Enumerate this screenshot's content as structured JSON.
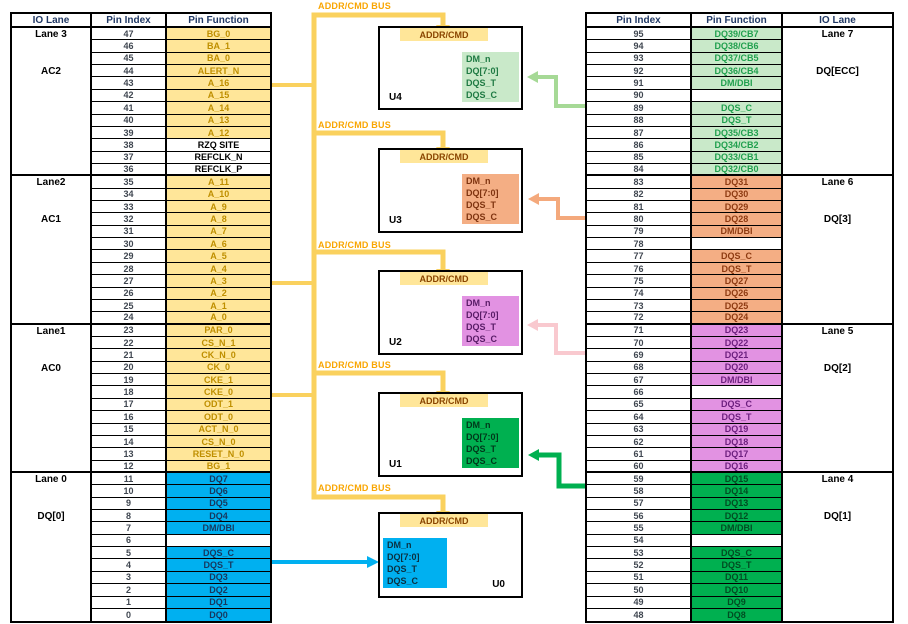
{
  "colors": {
    "yellow_bg": "#FFE699",
    "yellow_text": "#BF8F00",
    "blue_bg": "#00B0F0",
    "blue_text": "#17375E",
    "ltgreen_bg": "#C9E9C9",
    "ltgreen_text": "#21A04E",
    "salmon_bg": "#F4AE84",
    "salmon_text": "#8E3B12",
    "violet_bg": "#E292E2",
    "violet_text": "#6C1F7E",
    "green_bg": "#00B050",
    "green_text": "#004D22",
    "bus": "#FAD15E",
    "bus_label_text": "#F9A602",
    "addr_box_bg": "#FFE699",
    "addr_box_text": "#8A4500",
    "header_text": "#203864",
    "index_text": "#3F4650"
  },
  "bus": {
    "label": "ADDR/CMD BUS"
  },
  "left_table": {
    "headers": [
      "IO Lane",
      "Pin Index",
      "Pin Function"
    ],
    "groups": [
      {
        "lane": "Lane 3",
        "sublabel": "AC2",
        "rows": [
          [
            47,
            "BG_0",
            "Y"
          ],
          [
            46,
            "BA_1",
            "Y"
          ],
          [
            45,
            "BA_0",
            "Y"
          ],
          [
            44,
            "ALERT_N",
            "Y"
          ],
          [
            43,
            "A_16",
            "Y"
          ],
          [
            42,
            "A_15",
            "Y"
          ],
          [
            41,
            "A_14",
            "Y"
          ],
          [
            40,
            "A_13",
            "Y"
          ],
          [
            39,
            "A_12",
            "Y"
          ],
          [
            38,
            "RZQ SITE",
            "W"
          ],
          [
            37,
            "REFCLK_N",
            "W"
          ],
          [
            36,
            "REFCLK_P",
            "W"
          ]
        ]
      },
      {
        "lane": "Lane2",
        "sublabel": "AC1",
        "rows": [
          [
            35,
            "A_11",
            "Y"
          ],
          [
            34,
            "A_10",
            "Y"
          ],
          [
            33,
            "A_9",
            "Y"
          ],
          [
            32,
            "A_8",
            "Y"
          ],
          [
            31,
            "A_7",
            "Y"
          ],
          [
            30,
            "A_6",
            "Y"
          ],
          [
            29,
            "A_5",
            "Y"
          ],
          [
            28,
            "A_4",
            "Y"
          ],
          [
            27,
            "A_3",
            "Y"
          ],
          [
            26,
            "A_2",
            "Y"
          ],
          [
            25,
            "A_1",
            "Y"
          ],
          [
            24,
            "A_0",
            "Y"
          ]
        ]
      },
      {
        "lane": "Lane1",
        "sublabel": "AC0",
        "rows": [
          [
            23,
            "PAR_0",
            "Y"
          ],
          [
            22,
            "CS_N_1",
            "Y"
          ],
          [
            21,
            "CK_N_0",
            "Y"
          ],
          [
            20,
            "CK_0",
            "Y"
          ],
          [
            19,
            "CKE_1",
            "Y"
          ],
          [
            18,
            "CKE_0",
            "Y"
          ],
          [
            17,
            "ODT_1",
            "Y"
          ],
          [
            16,
            "ODT_0",
            "Y"
          ],
          [
            15,
            "ACT_N_0",
            "Y"
          ],
          [
            14,
            "CS_N_0",
            "Y"
          ],
          [
            13,
            "RESET_N_0",
            "Y"
          ],
          [
            12,
            "BG_1",
            "Y"
          ]
        ]
      },
      {
        "lane": "Lane 0",
        "sublabel": "DQ[0]",
        "rows": [
          [
            11,
            "DQ7",
            "B"
          ],
          [
            10,
            "DQ6",
            "B"
          ],
          [
            9,
            "DQ5",
            "B"
          ],
          [
            8,
            "DQ4",
            "B"
          ],
          [
            7,
            "DM/DBI",
            "B"
          ],
          [
            6,
            "",
            "X"
          ],
          [
            5,
            "DQS_C",
            "B"
          ],
          [
            4,
            "DQS_T",
            "B"
          ],
          [
            3,
            "DQ3",
            "B"
          ],
          [
            2,
            "DQ2",
            "B"
          ],
          [
            1,
            "DQ1",
            "B"
          ],
          [
            0,
            "DQ0",
            "B"
          ]
        ]
      }
    ]
  },
  "right_table": {
    "headers": [
      "Pin Index",
      "Pin Function",
      "IO Lane"
    ],
    "groups": [
      {
        "lane": "Lane 7",
        "sublabel": "DQ[ECC]",
        "rows": [
          [
            95,
            "DQ39/CB7",
            "LG"
          ],
          [
            94,
            "DQ38/CB6",
            "LG"
          ],
          [
            93,
            "DQ37/CB5",
            "LG"
          ],
          [
            92,
            "DQ36/CB4",
            "LG"
          ],
          [
            91,
            "DM/DBI",
            "LG"
          ],
          [
            90,
            "",
            "X"
          ],
          [
            89,
            "DQS_C",
            "LG"
          ],
          [
            88,
            "DQS_T",
            "LG"
          ],
          [
            87,
            "DQ35/CB3",
            "LG"
          ],
          [
            86,
            "DQ34/CB2",
            "LG"
          ],
          [
            85,
            "DQ33/CB1",
            "LG"
          ],
          [
            84,
            "DQ32/CB0",
            "LG"
          ]
        ]
      },
      {
        "lane": "Lane 6",
        "sublabel": "DQ[3]",
        "rows": [
          [
            83,
            "DQ31",
            "S"
          ],
          [
            82,
            "DQ30",
            "S"
          ],
          [
            81,
            "DQ29",
            "S"
          ],
          [
            80,
            "DQ28",
            "S"
          ],
          [
            79,
            "DM/DBI",
            "S"
          ],
          [
            78,
            "",
            "X"
          ],
          [
            77,
            "DQS_C",
            "S"
          ],
          [
            76,
            "DQS_T",
            "S"
          ],
          [
            75,
            "DQ27",
            "S"
          ],
          [
            74,
            "DQ26",
            "S"
          ],
          [
            73,
            "DQ25",
            "S"
          ],
          [
            72,
            "DQ24",
            "S"
          ]
        ]
      },
      {
        "lane": "Lane 5",
        "sublabel": "DQ[2]",
        "rows": [
          [
            71,
            "DQ23",
            "V"
          ],
          [
            70,
            "DQ22",
            "V"
          ],
          [
            69,
            "DQ21",
            "V"
          ],
          [
            68,
            "DQ20",
            "V"
          ],
          [
            67,
            "DM/DBI",
            "V"
          ],
          [
            66,
            "",
            "X"
          ],
          [
            65,
            "DQS_C",
            "V"
          ],
          [
            64,
            "DQS_T",
            "V"
          ],
          [
            63,
            "DQ19",
            "V"
          ],
          [
            62,
            "DQ18",
            "V"
          ],
          [
            61,
            "DQ17",
            "V"
          ],
          [
            60,
            "DQ16",
            "V"
          ]
        ]
      },
      {
        "lane": "Lane 4",
        "sublabel": "DQ[1]",
        "rows": [
          [
            59,
            "DQ15",
            "G"
          ],
          [
            58,
            "DQ14",
            "G"
          ],
          [
            57,
            "DQ13",
            "G"
          ],
          [
            56,
            "DQ12",
            "G"
          ],
          [
            55,
            "DM/DBI",
            "G"
          ],
          [
            54,
            "",
            "X"
          ],
          [
            53,
            "DQS_C",
            "G"
          ],
          [
            52,
            "DQS_T",
            "G"
          ],
          [
            51,
            "DQ11",
            "G"
          ],
          [
            50,
            "DQ10",
            "G"
          ],
          [
            49,
            "DQ9",
            "G"
          ],
          [
            48,
            "DQ8",
            "G"
          ]
        ]
      }
    ]
  },
  "chips": [
    {
      "id": "U4",
      "addr_label": "ADDR/CMD",
      "signals": [
        "DM_n",
        "DQ[7:0]",
        "DQS_T",
        "DQS_C"
      ],
      "box_style": "LG"
    },
    {
      "id": "U3",
      "addr_label": "ADDR/CMD",
      "signals": [
        "DM_n",
        "DQ[7:0]",
        "DQS_T",
        "DQS_C"
      ],
      "box_style": "S"
    },
    {
      "id": "U2",
      "addr_label": "ADDR/CMD",
      "signals": [
        "DM_n",
        "DQ[7:0]",
        "DQS_T",
        "DQS_C"
      ],
      "box_style": "V"
    },
    {
      "id": "U1",
      "addr_label": "ADDR/CMD",
      "signals": [
        "DM_n",
        "DQ[7:0]",
        "DQS_T",
        "DQS_C"
      ],
      "box_style": "G"
    },
    {
      "id": "U0",
      "addr_label": "ADDR/CMD",
      "signals": [
        "DM_n",
        "DQ[7:0]",
        "DQS_T",
        "DQS_C"
      ],
      "box_style": "B"
    }
  ],
  "connections": [
    {
      "from_lane": "Lane 7",
      "to_chip": "U4",
      "color": "#A6D996"
    },
    {
      "from_lane": "Lane 6",
      "to_chip": "U3",
      "color": "#F4A97C"
    },
    {
      "from_lane": "Lane 5",
      "to_chip": "U2",
      "color": "#F9C9CF"
    },
    {
      "from_lane": "Lane 4",
      "to_chip": "U1",
      "color": "#00B050"
    },
    {
      "from_lane": "Lane 0",
      "to_chip": "U0",
      "color": "#00B0F0"
    }
  ]
}
